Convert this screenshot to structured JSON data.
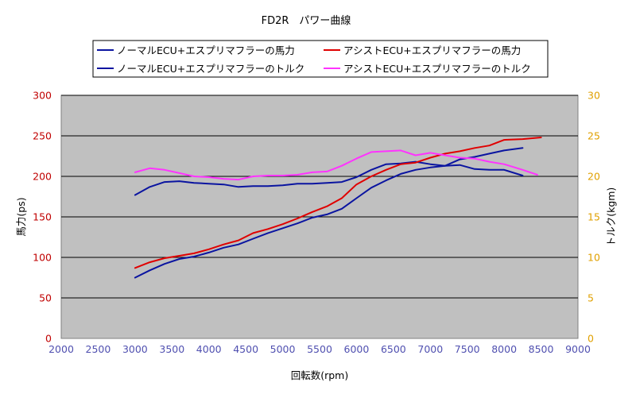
{
  "chart_data": {
    "type": "line",
    "title": "FD2R　パワー曲線",
    "xlabel": "回転数(rpm)",
    "ylabel_left": "馬力(ps)",
    "ylabel_right": "トルク(kgm)",
    "xlim": [
      2000,
      9000
    ],
    "ylim_left": [
      0,
      300
    ],
    "ylim_right": [
      0,
      30
    ],
    "x_ticks": [
      2000,
      2500,
      3000,
      3500,
      4000,
      4500,
      5000,
      5500,
      6000,
      6500,
      7000,
      7500,
      8000,
      8500,
      9000
    ],
    "y_ticks_left": [
      0,
      50,
      100,
      150,
      200,
      250,
      300
    ],
    "y_ticks_right": [
      0,
      5,
      10,
      15,
      20,
      25,
      30
    ],
    "grid": "horizontal",
    "legend_position": "top",
    "colors": {
      "plot_bg": "#c0c0c0",
      "grid": "#000000",
      "left_axis_text": "#c00000",
      "right_axis_text": "#e0a000",
      "x_axis_text": "#5050b0",
      "normal": "#0a14a0",
      "assist_power": "#e00000",
      "assist_torque": "#ff33ff"
    },
    "series": [
      {
        "name": "ノーマルECU+エスプリマフラーの馬力",
        "axis": "left",
        "color": "#0a14a0",
        "points": [
          [
            3000,
            75
          ],
          [
            3200,
            84
          ],
          [
            3400,
            92
          ],
          [
            3600,
            98
          ],
          [
            3800,
            101
          ],
          [
            4000,
            106
          ],
          [
            4200,
            112
          ],
          [
            4400,
            116
          ],
          [
            4600,
            123
          ],
          [
            4800,
            130
          ],
          [
            5000,
            136
          ],
          [
            5200,
            142
          ],
          [
            5400,
            149
          ],
          [
            5600,
            153
          ],
          [
            5800,
            160
          ],
          [
            6000,
            173
          ],
          [
            6200,
            186
          ],
          [
            6400,
            195
          ],
          [
            6600,
            203
          ],
          [
            6800,
            208
          ],
          [
            7000,
            211
          ],
          [
            7200,
            213
          ],
          [
            7400,
            221
          ],
          [
            7600,
            224
          ],
          [
            7800,
            228
          ],
          [
            8000,
            232
          ],
          [
            8250,
            235
          ]
        ]
      },
      {
        "name": "ノーマルECU+エスプリマフラーのトルク",
        "axis": "right",
        "color": "#0a14a0",
        "points": [
          [
            3000,
            17.7
          ],
          [
            3200,
            18.7
          ],
          [
            3400,
            19.3
          ],
          [
            3600,
            19.4
          ],
          [
            3800,
            19.2
          ],
          [
            4000,
            19.1
          ],
          [
            4200,
            19.0
          ],
          [
            4400,
            18.7
          ],
          [
            4600,
            18.8
          ],
          [
            4800,
            18.8
          ],
          [
            5000,
            18.9
          ],
          [
            5200,
            19.1
          ],
          [
            5400,
            19.1
          ],
          [
            5600,
            19.2
          ],
          [
            5800,
            19.3
          ],
          [
            6000,
            19.9
          ],
          [
            6200,
            20.8
          ],
          [
            6400,
            21.5
          ],
          [
            6600,
            21.6
          ],
          [
            6800,
            21.8
          ],
          [
            7000,
            21.5
          ],
          [
            7200,
            21.3
          ],
          [
            7400,
            21.4
          ],
          [
            7600,
            20.9
          ],
          [
            7800,
            20.8
          ],
          [
            8000,
            20.8
          ],
          [
            8250,
            20.1
          ]
        ]
      },
      {
        "name": "アシストECU+エスプリマフラーの馬力",
        "axis": "left",
        "color": "#e00000",
        "points": [
          [
            3000,
            87
          ],
          [
            3200,
            94
          ],
          [
            3400,
            99
          ],
          [
            3600,
            102
          ],
          [
            3800,
            105
          ],
          [
            4000,
            110
          ],
          [
            4200,
            116
          ],
          [
            4400,
            121
          ],
          [
            4600,
            130
          ],
          [
            4800,
            135
          ],
          [
            5000,
            141
          ],
          [
            5200,
            148
          ],
          [
            5400,
            156
          ],
          [
            5600,
            163
          ],
          [
            5800,
            173
          ],
          [
            6000,
            190
          ],
          [
            6200,
            200
          ],
          [
            6400,
            208
          ],
          [
            6600,
            215
          ],
          [
            6800,
            217
          ],
          [
            7000,
            223
          ],
          [
            7200,
            228
          ],
          [
            7400,
            231
          ],
          [
            7600,
            235
          ],
          [
            7800,
            238
          ],
          [
            8000,
            245
          ],
          [
            8250,
            246
          ],
          [
            8500,
            248
          ]
        ]
      },
      {
        "name": "アシストECU+エスプリマフラーのトルク",
        "axis": "right",
        "color": "#ff33ff",
        "points": [
          [
            3000,
            20.5
          ],
          [
            3200,
            21.0
          ],
          [
            3400,
            20.8
          ],
          [
            3600,
            20.4
          ],
          [
            3800,
            20.0
          ],
          [
            4000,
            19.9
          ],
          [
            4200,
            19.7
          ],
          [
            4400,
            19.6
          ],
          [
            4600,
            20.0
          ],
          [
            4800,
            20.1
          ],
          [
            5000,
            20.1
          ],
          [
            5200,
            20.2
          ],
          [
            5400,
            20.5
          ],
          [
            5600,
            20.6
          ],
          [
            5800,
            21.3
          ],
          [
            6000,
            22.2
          ],
          [
            6200,
            23.0
          ],
          [
            6400,
            23.1
          ],
          [
            6600,
            23.2
          ],
          [
            6800,
            22.6
          ],
          [
            7000,
            22.9
          ],
          [
            7200,
            22.6
          ],
          [
            7400,
            22.3
          ],
          [
            7600,
            22.2
          ],
          [
            7800,
            21.8
          ],
          [
            8000,
            21.5
          ],
          [
            8250,
            20.8
          ],
          [
            8450,
            20.2
          ]
        ]
      }
    ]
  }
}
